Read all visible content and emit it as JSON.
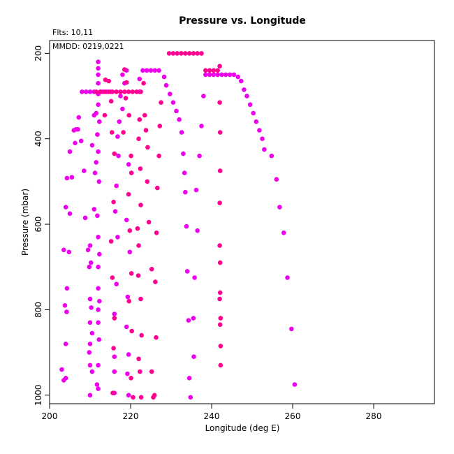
{
  "chart_data": {
    "type": "scatter",
    "title": "Pressure vs. Longitude",
    "xlabel": "Longitude (deg E)",
    "ylabel": "Pressure (mbar)",
    "annotations": {
      "flts": "Flts: 10,11",
      "mmdd": "MMDD: 0219,0221"
    },
    "xlim": [
      200,
      295
    ],
    "ylim": [
      1020,
      170
    ],
    "y_reversed": true,
    "x_ticks": [
      "200",
      "220",
      "240",
      "260",
      "280"
    ],
    "y_ticks": [
      "200",
      "400",
      "600",
      "800",
      "1000"
    ],
    "grid": false,
    "legend": "none",
    "series": [
      {
        "color": "#ee00ee",
        "points": [
          [
            203,
            940
          ],
          [
            203.5,
            965
          ],
          [
            204,
            960
          ],
          [
            203.8,
            790
          ],
          [
            204.2,
            805
          ],
          [
            204,
            880
          ],
          [
            204.3,
            750
          ],
          [
            203.5,
            660
          ],
          [
            204.8,
            665
          ],
          [
            204,
            560
          ],
          [
            205,
            575
          ],
          [
            204.3,
            492
          ],
          [
            205.5,
            490
          ],
          [
            205,
            430
          ],
          [
            206,
            380
          ],
          [
            206.5,
            378
          ],
          [
            207,
            378
          ],
          [
            206.3,
            410
          ],
          [
            207.2,
            350
          ],
          [
            207.8,
            405
          ],
          [
            208.5,
            475
          ],
          [
            208.8,
            585
          ],
          [
            209.5,
            660
          ],
          [
            210,
            650
          ],
          [
            209.8,
            700
          ],
          [
            210.2,
            690
          ],
          [
            210,
            775
          ],
          [
            210.3,
            795
          ],
          [
            210,
            830
          ],
          [
            210.5,
            855
          ],
          [
            210,
            880
          ],
          [
            209.8,
            900
          ],
          [
            210,
            930
          ],
          [
            210.5,
            945
          ],
          [
            210,
            1000
          ],
          [
            211,
            565
          ],
          [
            211.2,
            480
          ],
          [
            210.5,
            415
          ],
          [
            211,
            345
          ],
          [
            211.5,
            340
          ],
          [
            212,
            220
          ],
          [
            212,
            235
          ],
          [
            212,
            250
          ],
          [
            212,
            270
          ],
          [
            212,
            295
          ],
          [
            212,
            320
          ],
          [
            212.3,
            360
          ],
          [
            211.8,
            390
          ],
          [
            212,
            430
          ],
          [
            211.5,
            455
          ],
          [
            212.2,
            500
          ],
          [
            211.8,
            580
          ],
          [
            212,
            630
          ],
          [
            212.3,
            670
          ],
          [
            212,
            700
          ],
          [
            212,
            750
          ],
          [
            212.3,
            780
          ],
          [
            212,
            800
          ],
          [
            212,
            830
          ],
          [
            212.2,
            870
          ],
          [
            212,
            930
          ],
          [
            212,
            985
          ],
          [
            211.7,
            975
          ],
          [
            208,
            290
          ],
          [
            209,
            290
          ],
          [
            210,
            290
          ],
          [
            211,
            290
          ],
          [
            213,
            290
          ],
          [
            214,
            290
          ],
          [
            215,
            290
          ],
          [
            219,
            240
          ],
          [
            218,
            250
          ],
          [
            218.5,
            270
          ],
          [
            217.5,
            300
          ],
          [
            218,
            330
          ],
          [
            217.2,
            360
          ],
          [
            216.8,
            395
          ],
          [
            217,
            440
          ],
          [
            216.5,
            510
          ],
          [
            216.2,
            570
          ],
          [
            216.8,
            630
          ],
          [
            216.5,
            740
          ],
          [
            216,
            810
          ],
          [
            216,
            910
          ],
          [
            216,
            945
          ],
          [
            216,
            995
          ],
          [
            219.5,
            460
          ],
          [
            219,
            590
          ],
          [
            219.8,
            665
          ],
          [
            219.3,
            770
          ],
          [
            219,
            840
          ],
          [
            219.5,
            905
          ],
          [
            219.2,
            950
          ],
          [
            219.5,
            1000
          ],
          [
            222.2,
            260
          ],
          [
            222.2,
            290
          ],
          [
            223,
            240
          ],
          [
            224,
            240
          ],
          [
            225,
            240
          ],
          [
            226,
            240
          ],
          [
            227,
            240
          ],
          [
            228.3,
            255
          ],
          [
            228.8,
            275
          ],
          [
            229.7,
            295
          ],
          [
            230.5,
            315
          ],
          [
            231.3,
            335
          ],
          [
            232,
            355
          ],
          [
            232.6,
            385
          ],
          [
            233,
            435
          ],
          [
            233.3,
            480
          ],
          [
            233.5,
            525
          ],
          [
            233.8,
            605
          ],
          [
            234,
            710
          ],
          [
            234.3,
            825
          ],
          [
            234.5,
            960
          ],
          [
            234.8,
            1005
          ],
          [
            235.5,
            820
          ],
          [
            235.6,
            910
          ],
          [
            236.2,
            520
          ],
          [
            236.5,
            615
          ],
          [
            235.8,
            725
          ],
          [
            237,
            440
          ],
          [
            237.5,
            370
          ],
          [
            238,
            300
          ],
          [
            238.5,
            250
          ],
          [
            239.5,
            250
          ],
          [
            240.5,
            250
          ],
          [
            241.5,
            250
          ],
          [
            242.5,
            250
          ],
          [
            243.5,
            250
          ],
          [
            244.5,
            250
          ],
          [
            245.5,
            250
          ],
          [
            246.5,
            255
          ],
          [
            247.3,
            265
          ],
          [
            248,
            285
          ],
          [
            248.7,
            300
          ],
          [
            249.5,
            320
          ],
          [
            250.3,
            340
          ],
          [
            251,
            360
          ],
          [
            251.8,
            380
          ],
          [
            252.5,
            400
          ],
          [
            253,
            425
          ],
          [
            254.8,
            440
          ],
          [
            256,
            495
          ],
          [
            256.8,
            560
          ],
          [
            257.8,
            620
          ],
          [
            258.7,
            725
          ],
          [
            259.7,
            845
          ],
          [
            260.5,
            975
          ]
        ]
      },
      {
        "color": "#ff0090",
        "points": [
          [
            211.5,
            290
          ],
          [
            212.5,
            290
          ],
          [
            213.5,
            290
          ],
          [
            214.5,
            290
          ],
          [
            215.5,
            290
          ],
          [
            216.5,
            290
          ],
          [
            217.5,
            290
          ],
          [
            218.5,
            290
          ],
          [
            219.5,
            290
          ],
          [
            220.5,
            290
          ],
          [
            221.5,
            290
          ],
          [
            222.5,
            290
          ],
          [
            213.8,
            262
          ],
          [
            214.6,
            265
          ],
          [
            215.2,
            312
          ],
          [
            213.6,
            345
          ],
          [
            215.4,
            385
          ],
          [
            216,
            435
          ],
          [
            215.8,
            548
          ],
          [
            215.2,
            640
          ],
          [
            215.5,
            725
          ],
          [
            216,
            820
          ],
          [
            215.8,
            890
          ],
          [
            215.6,
            995
          ],
          [
            218.5,
            238
          ],
          [
            219,
            268
          ],
          [
            218.8,
            305
          ],
          [
            218.2,
            385
          ],
          [
            219.6,
            345
          ],
          [
            220.1,
            440
          ],
          [
            220.2,
            480
          ],
          [
            219.5,
            530
          ],
          [
            219.8,
            615
          ],
          [
            220.2,
            715
          ],
          [
            219.6,
            780
          ],
          [
            220.3,
            850
          ],
          [
            220.1,
            960
          ],
          [
            220.6,
            1005
          ],
          [
            222.2,
            355
          ],
          [
            222,
            400
          ],
          [
            222.4,
            470
          ],
          [
            222.5,
            555
          ],
          [
            221.7,
            610
          ],
          [
            222,
            650
          ],
          [
            221.9,
            720
          ],
          [
            222.5,
            775
          ],
          [
            222.7,
            860
          ],
          [
            222,
            915
          ],
          [
            222.3,
            945
          ],
          [
            222.6,
            1005
          ],
          [
            223.2,
            270
          ],
          [
            223.5,
            345
          ],
          [
            223.8,
            380
          ],
          [
            224.2,
            420
          ],
          [
            224.1,
            500
          ],
          [
            224.5,
            595
          ],
          [
            225.2,
            705
          ],
          [
            225.6,
            1005
          ],
          [
            225.9,
            1000
          ],
          [
            225.2,
            945
          ],
          [
            226.3,
            865
          ],
          [
            226.1,
            735
          ],
          [
            226.4,
            620
          ],
          [
            226.6,
            515
          ],
          [
            227,
            440
          ],
          [
            227.2,
            370
          ],
          [
            227.5,
            315
          ],
          [
            229.5,
            200
          ],
          [
            230.5,
            200
          ],
          [
            231.5,
            200
          ],
          [
            232.5,
            200
          ],
          [
            233.5,
            200
          ],
          [
            234.5,
            200
          ],
          [
            235.5,
            200
          ],
          [
            236.5,
            200
          ],
          [
            237.5,
            200
          ],
          [
            238.5,
            240
          ],
          [
            239.5,
            240
          ],
          [
            240.5,
            240
          ],
          [
            241.5,
            240
          ],
          [
            242,
            230
          ],
          [
            242,
            315
          ],
          [
            242.1,
            385
          ],
          [
            242.1,
            475
          ],
          [
            242,
            550
          ],
          [
            242,
            650
          ],
          [
            242.1,
            690
          ],
          [
            242.1,
            760
          ],
          [
            242,
            775
          ],
          [
            242.2,
            820
          ],
          [
            242.1,
            835
          ],
          [
            242.2,
            885
          ],
          [
            242.2,
            930
          ]
        ]
      }
    ]
  }
}
